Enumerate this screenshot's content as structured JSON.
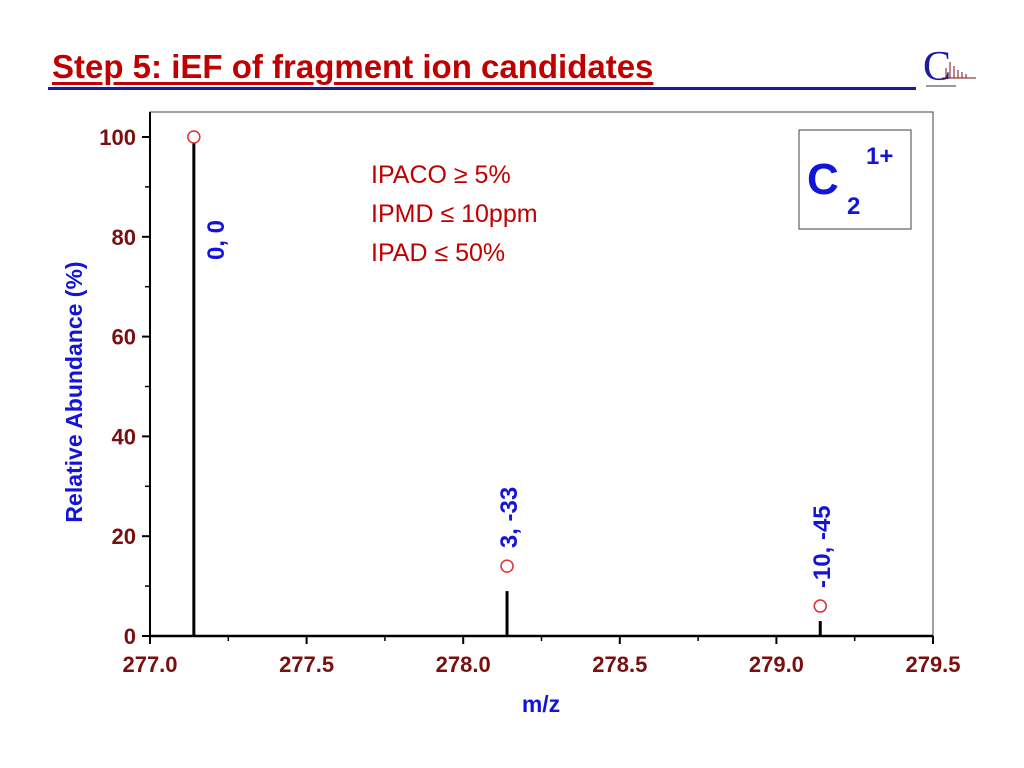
{
  "slide": {
    "title": "Step 5: iEF of fragment ion candidates"
  },
  "colors": {
    "title": "#c00000",
    "rule": "#1a1aa6",
    "tick_labels": "#7a0f0f",
    "axis_titles": "#1414d8",
    "peak_labels": "#1414d8",
    "peaks": "#000000",
    "markers": "#e03030",
    "filter_text": "#c00000"
  },
  "logo": {
    "icon": "c-spectrum-logo"
  },
  "chart_data": {
    "type": "bar",
    "xlabel": "m/z",
    "ylabel": "Relative Abundance (%)",
    "xlim": [
      277.0,
      279.5
    ],
    "ylim": [
      0,
      100
    ],
    "x_ticks": [
      "277.0",
      "277.5",
      "278.0",
      "278.5",
      "279.0",
      "279.5"
    ],
    "y_ticks": [
      "0",
      "20",
      "40",
      "60",
      "80",
      "100"
    ],
    "grid": false,
    "series": [
      {
        "kind": "measured",
        "points": [
          {
            "x": 277.14,
            "y": 100,
            "label": "0, 0"
          },
          {
            "x": 278.14,
            "y": 9,
            "label": "3, -33"
          },
          {
            "x": 279.14,
            "y": 3,
            "label": "-10, -45"
          }
        ]
      },
      {
        "kind": "theoretical",
        "marker": "open-circle",
        "points": [
          {
            "x": 277.14,
            "y": 100
          },
          {
            "x": 278.14,
            "y": 14
          },
          {
            "x": 279.14,
            "y": 6
          }
        ]
      }
    ],
    "annotations": [
      "IPACO ≥ 5%",
      "IPMD ≤ 10ppm",
      "IPAD ≤ 50%"
    ],
    "species": {
      "element": "C",
      "subscript": "2",
      "charge": "1+"
    }
  }
}
